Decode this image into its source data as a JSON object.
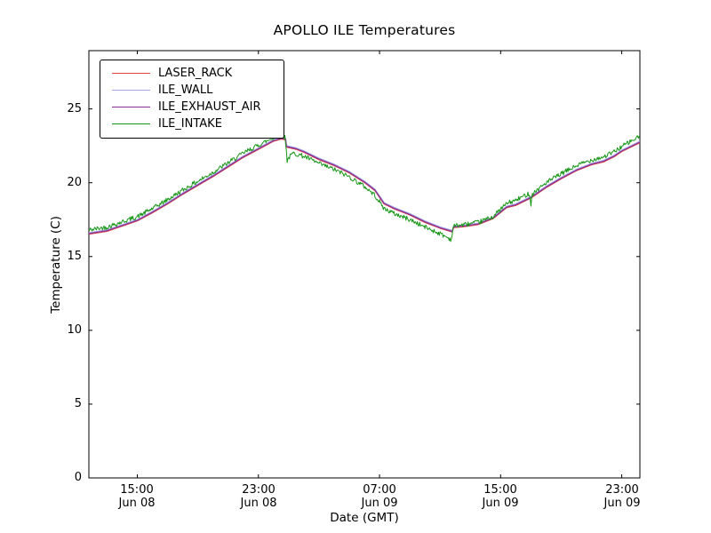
{
  "title": "APOLLO ILE Temperatures",
  "axes": {
    "xlabel": "Date (GMT)",
    "ylabel": "Temperature (C)",
    "x_ticks": [
      {
        "hour": 15,
        "time": "15:00",
        "date": "Jun 08"
      },
      {
        "hour": 23,
        "time": "23:00",
        "date": "Jun 08"
      },
      {
        "hour": 31,
        "time": "07:00",
        "date": "Jun 09"
      },
      {
        "hour": 39,
        "time": "15:00",
        "date": "Jun 09"
      },
      {
        "hour": 47,
        "time": "23:00",
        "date": "Jun 09"
      }
    ],
    "y_ticks": [
      0,
      5,
      10,
      15,
      20,
      25
    ],
    "x_range_hours": [
      11.8,
      48.2
    ],
    "y_range": [
      0,
      28.95
    ],
    "grid": false,
    "frame_color": "#000000",
    "background": "#ffffff"
  },
  "legend": {
    "position": "upper left",
    "items": [
      {
        "label": "LASER_RACK",
        "color": "#e94545"
      },
      {
        "label": "ILE_WALL",
        "color": "#a3a3e8"
      },
      {
        "label": "ILE_EXHAUST_AIR",
        "color": "#8b3090"
      },
      {
        "label": "ILE_INTAKE",
        "color": "#169616"
      }
    ]
  },
  "chart_data": {
    "type": "line",
    "title": "APOLLO ILE Temperatures",
    "xlabel": "Date (GMT)",
    "ylabel": "Temperature (C)",
    "x_unit": "hours since Jun 08 00:00 GMT",
    "ylim": [
      0,
      28.95
    ],
    "base_keypoints": [
      [
        11.8,
        16.55
      ],
      [
        13,
        16.75
      ],
      [
        14,
        17.1
      ],
      [
        15,
        17.45
      ],
      [
        16,
        18.0
      ],
      [
        17,
        18.6
      ],
      [
        18,
        19.25
      ],
      [
        19,
        19.85
      ],
      [
        20,
        20.45
      ],
      [
        21,
        21.1
      ],
      [
        22,
        21.75
      ],
      [
        23,
        22.3
      ],
      [
        24,
        22.85
      ],
      [
        24.5,
        23.0
      ],
      [
        24.8,
        22.95
      ],
      [
        24.85,
        22.45
      ],
      [
        25.5,
        22.3
      ],
      [
        26,
        22.1
      ],
      [
        27,
        21.6
      ],
      [
        28,
        21.2
      ],
      [
        29,
        20.7
      ],
      [
        30,
        20.05
      ],
      [
        30.7,
        19.5
      ],
      [
        31.3,
        18.6
      ],
      [
        32,
        18.25
      ],
      [
        33,
        17.85
      ],
      [
        34,
        17.35
      ],
      [
        35,
        16.95
      ],
      [
        35.8,
        16.7
      ],
      [
        35.9,
        17.0
      ],
      [
        36.5,
        17.05
      ],
      [
        37.5,
        17.2
      ],
      [
        38.5,
        17.6
      ],
      [
        39.4,
        18.35
      ],
      [
        40,
        18.5
      ],
      [
        41,
        19.0
      ],
      [
        42,
        19.7
      ],
      [
        43,
        20.3
      ],
      [
        44,
        20.85
      ],
      [
        45,
        21.25
      ],
      [
        45.8,
        21.45
      ],
      [
        46.5,
        21.8
      ],
      [
        47,
        22.15
      ],
      [
        48.2,
        22.75
      ]
    ],
    "series": [
      {
        "name": "LASER_RACK",
        "color": "#e94545",
        "offset": -0.04,
        "noise": 0,
        "use_base": true
      },
      {
        "name": "ILE_WALL",
        "color": "#a3a3e8",
        "offset": 0.06,
        "noise": 0,
        "use_base": true
      },
      {
        "name": "ILE_EXHAUST_AIR",
        "color": "#8b3090",
        "offset": 0.0,
        "noise": 0,
        "use_base": true
      },
      {
        "name": "ILE_INTAKE",
        "color": "#169616",
        "offset": 0.0,
        "noise": 0.16,
        "use_base": false,
        "keypoints": [
          [
            11.8,
            16.8
          ],
          [
            13,
            17.0
          ],
          [
            14,
            17.35
          ],
          [
            15,
            17.7
          ],
          [
            16,
            18.25
          ],
          [
            17,
            18.85
          ],
          [
            18,
            19.5
          ],
          [
            19,
            20.1
          ],
          [
            20,
            20.7
          ],
          [
            21,
            21.35
          ],
          [
            22,
            22.0
          ],
          [
            23,
            22.55
          ],
          [
            24,
            23.05
          ],
          [
            24.5,
            23.2
          ],
          [
            24.75,
            23.1
          ],
          [
            24.82,
            22.6
          ],
          [
            24.9,
            21.45
          ],
          [
            25.0,
            21.7
          ],
          [
            25.3,
            22.0
          ],
          [
            26,
            21.8
          ],
          [
            27,
            21.3
          ],
          [
            28,
            20.9
          ],
          [
            29,
            20.4
          ],
          [
            30,
            19.75
          ],
          [
            30.7,
            19.15
          ],
          [
            31.3,
            18.25
          ],
          [
            32,
            17.9
          ],
          [
            33,
            17.5
          ],
          [
            34,
            17.0
          ],
          [
            35,
            16.55
          ],
          [
            35.75,
            16.15
          ],
          [
            35.85,
            16.95
          ],
          [
            36,
            17.1
          ],
          [
            36.5,
            17.15
          ],
          [
            37.5,
            17.3
          ],
          [
            38.5,
            17.7
          ],
          [
            39.4,
            18.6
          ],
          [
            40,
            18.8
          ],
          [
            40.9,
            19.3
          ],
          [
            41.0,
            18.55
          ],
          [
            41.1,
            19.25
          ],
          [
            42,
            20.0
          ],
          [
            43,
            20.6
          ],
          [
            44,
            21.15
          ],
          [
            45,
            21.55
          ],
          [
            45.8,
            21.75
          ],
          [
            46.5,
            22.1
          ],
          [
            47,
            22.45
          ],
          [
            48.2,
            23.15
          ]
        ]
      }
    ]
  }
}
